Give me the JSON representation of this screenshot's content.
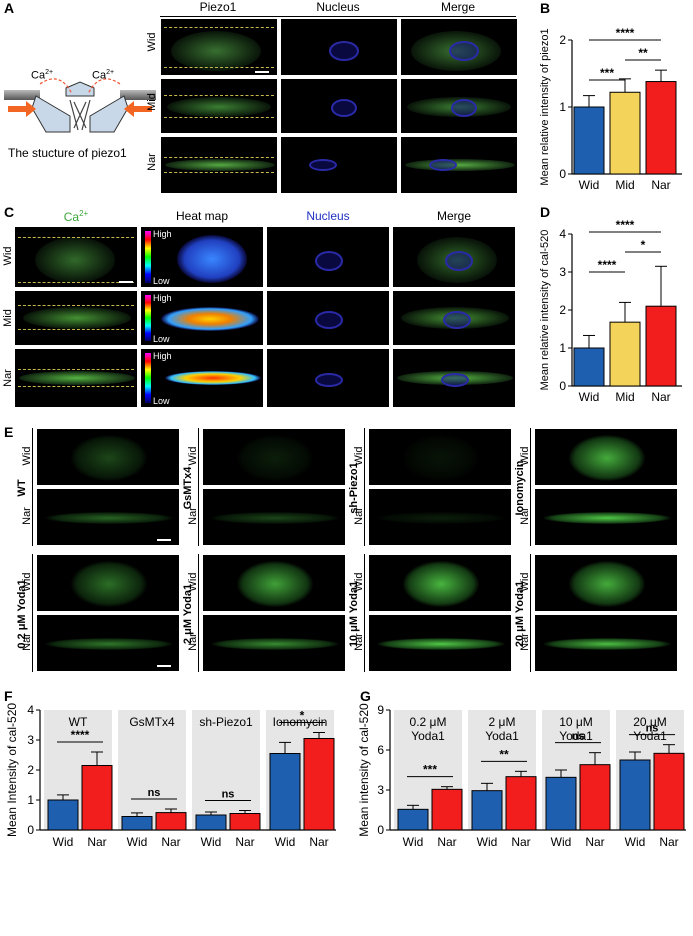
{
  "panels": {
    "A": {
      "label": "A",
      "diagram_caption": "The stucture of piezo1",
      "ion_left": "Ca",
      "ion_right": "Ca",
      "ion_sup": "2+",
      "col_headers": [
        "Piezo1",
        "Nucleus",
        "Merge"
      ],
      "rows": [
        "Wid",
        "Mid",
        "Nar"
      ]
    },
    "B": {
      "label": "B"
    },
    "C": {
      "label": "C",
      "col_ca": "Ca",
      "col_ca_sup": "2+",
      "col_headers": [
        "Heat map",
        "Nucleus",
        "Merge"
      ],
      "rows": [
        "Wid",
        "Mid",
        "Nar"
      ],
      "high": "High",
      "low": "Low"
    },
    "D": {
      "label": "D"
    },
    "E": {
      "label": "E",
      "groups": [
        "WT",
        "GsMTx4",
        "sh-Piezo1",
        "Ionomycin",
        "0.2 μM Yoda1",
        "2 μM Yoda1",
        "10 μM Yoda1",
        "20 μM Yoda1"
      ],
      "rows": [
        "Wid",
        "Nar"
      ]
    },
    "F": {
      "label": "F"
    },
    "G": {
      "label": "G"
    }
  },
  "colors": {
    "wid": "#1f5fb0",
    "mid": "#f3d35a",
    "nar": "#f21d1d",
    "shade": "#e6e6e6"
  },
  "chart_data": [
    {
      "id": "B",
      "type": "bar",
      "categories": [
        "Wid",
        "Mid",
        "Nar"
      ],
      "values": [
        1.0,
        1.22,
        1.38
      ],
      "errors": [
        0.17,
        0.2,
        0.17
      ],
      "ylabel": "Mean relative intensity of piezo1",
      "ylim": [
        0,
        2
      ],
      "yticks": [
        0,
        1,
        2
      ],
      "significance": [
        {
          "from": 0,
          "to": 1,
          "label": "***"
        },
        {
          "from": 1,
          "to": 2,
          "label": "**"
        },
        {
          "from": 0,
          "to": 2,
          "label": "****"
        }
      ]
    },
    {
      "id": "D",
      "type": "bar",
      "categories": [
        "Wid",
        "Mid",
        "Nar"
      ],
      "values": [
        1.0,
        1.68,
        2.1
      ],
      "errors": [
        0.33,
        0.52,
        1.05
      ],
      "ylabel": "Mean relative intensity of cal-520",
      "ylim": [
        0,
        4
      ],
      "yticks": [
        0,
        1,
        2,
        3,
        4
      ],
      "significance": [
        {
          "from": 0,
          "to": 1,
          "label": "****"
        },
        {
          "from": 1,
          "to": 2,
          "label": "*"
        },
        {
          "from": 0,
          "to": 2,
          "label": "****"
        }
      ]
    },
    {
      "id": "F",
      "type": "bar",
      "ylabel": "Mean Intensity of cal-520",
      "ylim": [
        0,
        4
      ],
      "yticks": [
        0,
        1,
        2,
        3,
        4
      ],
      "groups": [
        {
          "name": "WT",
          "values": [
            1.0,
            2.15
          ],
          "errors": [
            0.17,
            0.45
          ],
          "sig": "****"
        },
        {
          "name": "GsMTx4",
          "values": [
            0.45,
            0.58
          ],
          "errors": [
            0.12,
            0.12
          ],
          "sig": "ns"
        },
        {
          "name": "sh-Piezo1",
          "values": [
            0.5,
            0.55
          ],
          "errors": [
            0.1,
            0.1
          ],
          "sig": "ns"
        },
        {
          "name": "Ionomycin",
          "values": [
            2.55,
            3.05
          ],
          "errors": [
            0.37,
            0.2
          ],
          "sig": "*"
        }
      ],
      "categories": [
        "Wid",
        "Nar"
      ]
    },
    {
      "id": "G",
      "type": "bar",
      "ylabel": "Mean intensity of cal-520",
      "ylim": [
        0,
        9
      ],
      "yticks": [
        0,
        3,
        6,
        9
      ],
      "groups": [
        {
          "name": "0.2 μM",
          "name2": "Yoda1",
          "values": [
            1.55,
            3.05
          ],
          "errors": [
            0.3,
            0.2
          ],
          "sig": "***"
        },
        {
          "name": "2 μM",
          "name2": "Yoda1",
          "values": [
            2.95,
            4.0
          ],
          "errors": [
            0.55,
            0.4
          ],
          "sig": "**"
        },
        {
          "name": "10 μM",
          "name2": "Yoda1",
          "values": [
            3.95,
            4.9
          ],
          "errors": [
            0.55,
            0.9
          ],
          "sig": "ns"
        },
        {
          "name": "20 μM",
          "name2": "Yoda1",
          "values": [
            5.25,
            5.75
          ],
          "errors": [
            0.6,
            0.65
          ],
          "sig": "ns"
        }
      ],
      "categories": [
        "Wid",
        "Nar"
      ]
    }
  ]
}
